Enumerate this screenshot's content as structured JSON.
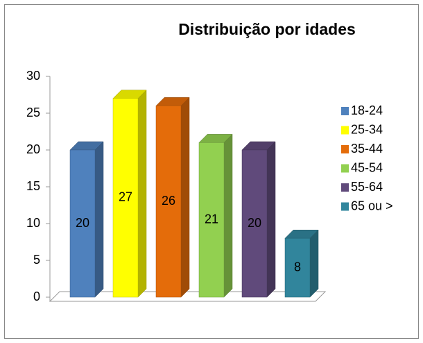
{
  "chart_data": {
    "type": "bar",
    "title": "Distribuição por idades",
    "categories": [
      "18-24",
      "25-34",
      "35-44",
      "45-54",
      "55-64",
      "65 ou >"
    ],
    "values": [
      20,
      27,
      26,
      21,
      20,
      8
    ],
    "colors": [
      "#4f81bd",
      "#ffff00",
      "#e46c0a",
      "#92d050",
      "#604a7b",
      "#31859c"
    ],
    "ylim": [
      0,
      30
    ],
    "yticks": [
      0,
      5,
      10,
      15,
      20,
      25,
      30
    ],
    "legend": "right"
  }
}
